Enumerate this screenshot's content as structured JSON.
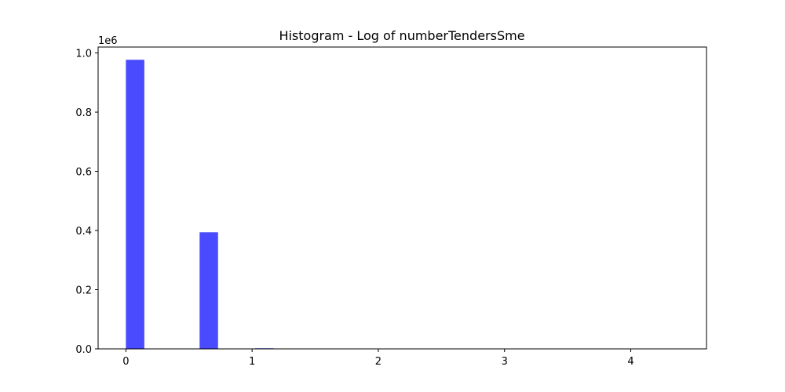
{
  "chart_data": {
    "type": "bar",
    "title": "Histogram - Log of numberTendersSme",
    "xlabel": "",
    "ylabel": "",
    "y_offset_label": "1e6",
    "xlim": [
      -0.22,
      4.6
    ],
    "ylim": [
      0,
      1.02
    ],
    "x_ticks": [
      0,
      1,
      2,
      3,
      4
    ],
    "x_tick_labels": [
      "0",
      "1",
      "2",
      "3",
      "4"
    ],
    "y_ticks": [
      0.0,
      0.2,
      0.4,
      0.6,
      0.8,
      1.0
    ],
    "y_tick_labels": [
      "0.0",
      "0.2",
      "0.4",
      "0.6",
      "0.8",
      "1.0"
    ],
    "bar_color": "#4a4aff",
    "bins": [
      {
        "x_start": 0.0,
        "x_end": 0.146,
        "value": 0.977
      },
      {
        "x_start": 0.584,
        "x_end": 0.73,
        "value": 0.394
      },
      {
        "x_start": 1.024,
        "x_end": 1.17,
        "value": 0.002
      }
    ],
    "grid": false,
    "legend": "none"
  }
}
